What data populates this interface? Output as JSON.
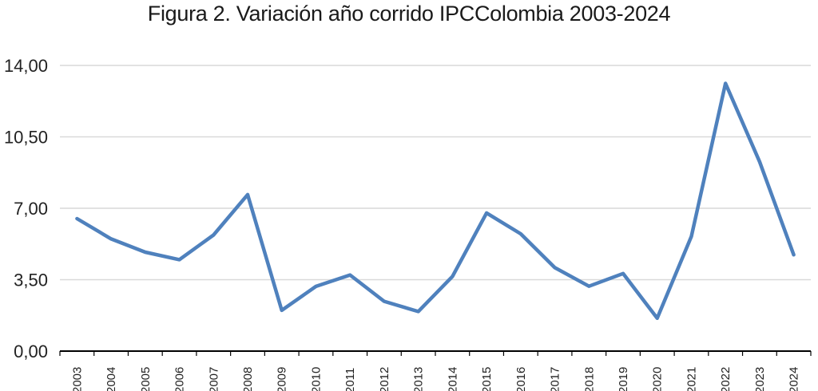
{
  "chart_data": {
    "type": "line",
    "title": "Figura 2. Variación año corrido IPCColombia 2003-2024",
    "xlabel": "",
    "ylabel": "",
    "ylim": [
      0,
      14
    ],
    "yticks": [
      "0,00",
      "3,50",
      "7,00",
      "10,50",
      "14,00"
    ],
    "ytick_values": [
      0,
      3.5,
      7,
      10.5,
      14
    ],
    "grid": true,
    "legend": "none",
    "categories": [
      "2003",
      "2004",
      "2005",
      "2006",
      "2007",
      "2008",
      "2009",
      "2010",
      "2011",
      "2012",
      "2013",
      "2014",
      "2015",
      "2016",
      "2017",
      "2018",
      "2019",
      "2020",
      "2021",
      "2022",
      "2023",
      "2024"
    ],
    "series": [
      {
        "values": [
          6.49,
          5.5,
          4.85,
          4.48,
          5.69,
          7.67,
          2.0,
          3.17,
          3.73,
          2.44,
          1.94,
          3.66,
          6.77,
          5.75,
          4.09,
          3.18,
          3.8,
          1.61,
          5.62,
          13.12,
          9.28,
          4.72
        ],
        "color": "#4f81bd"
      }
    ],
    "colors": {
      "line": "#4f81bd",
      "grid": "#d9d9d9",
      "axis": "#000000"
    }
  }
}
